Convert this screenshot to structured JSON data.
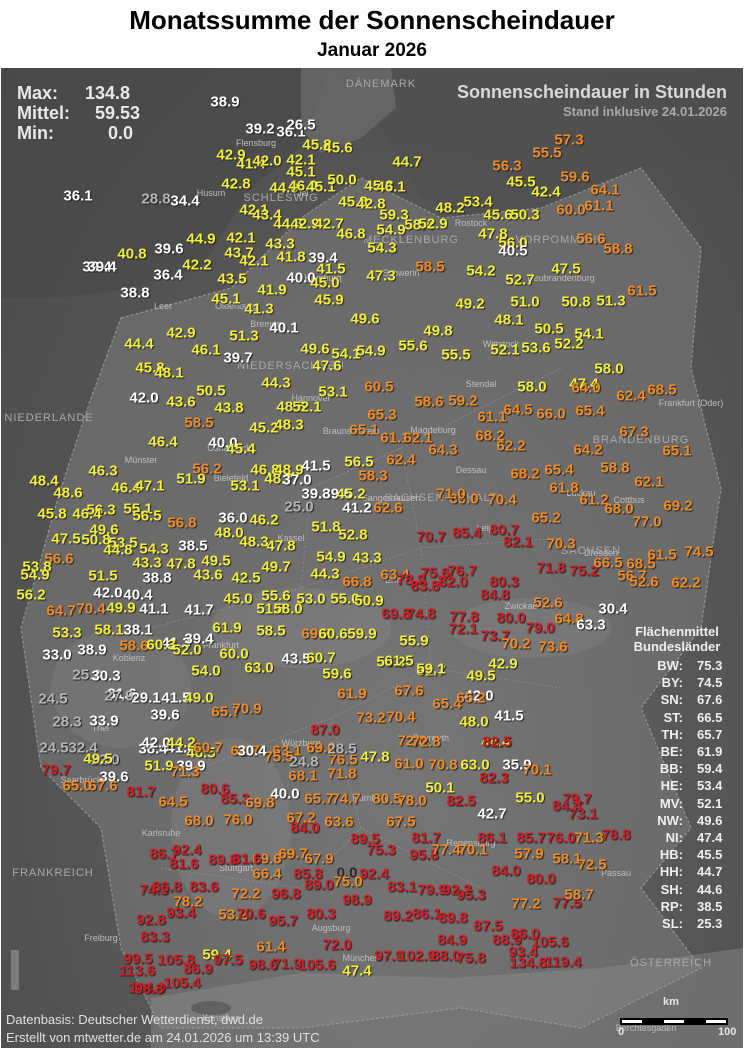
{
  "title": "Monatssumme der Sonnenscheindauer",
  "subtitle": "Januar 2026",
  "stats": {
    "max_label": "Max:",
    "max_value": "134.8",
    "mean_label": "Mittel:",
    "mean_value": "59.53",
    "min_label": "Min:",
    "min_value": "0.0"
  },
  "heading": "Sonnenscheindauer in Stunden",
  "status": "Stand inklusive 24.01.2026",
  "colors": {
    "white": "#ffffff",
    "yellow": "#f2ef3a",
    "orange": "#f08a24",
    "red": "#cf1f26",
    "gray": "#b5b5b5",
    "dark": "#2b2b2b"
  },
  "legend": {
    "title_line1": "Flächenmittel",
    "title_line2": "Bundesländer",
    "rows": [
      {
        "state": "BW:",
        "value": "75.3"
      },
      {
        "state": "BY:",
        "value": "74.5"
      },
      {
        "state": "SN:",
        "value": "67.6"
      },
      {
        "state": "ST:",
        "value": "66.5"
      },
      {
        "state": "TH:",
        "value": "65.7"
      },
      {
        "state": "BE:",
        "value": "61.9"
      },
      {
        "state": "BB:",
        "value": "59.4"
      },
      {
        "state": "HE:",
        "value": "53.4"
      },
      {
        "state": "MV:",
        "value": "52.1"
      },
      {
        "state": "NW:",
        "value": "49.6"
      },
      {
        "state": "NI:",
        "value": "47.4"
      },
      {
        "state": "HB:",
        "value": "45.5"
      },
      {
        "state": "HH:",
        "value": "44.7"
      },
      {
        "state": "SH:",
        "value": "44.6"
      },
      {
        "state": "RP:",
        "value": "38.5"
      },
      {
        "state": "SL:",
        "value": "25.3"
      }
    ]
  },
  "scale": {
    "unit": "km",
    "start": "0",
    "end": "100"
  },
  "credits": {
    "line1": "Datenbasis: Deutscher Wetterdienst, dwd.de",
    "line2": "Erstellt von mtwetter.de am 24.01.2026 um 13:39 UTC"
  },
  "regions": [
    "DÄNEMARK",
    "NIEDERLANDE",
    "FRANKREICH",
    "ÖSTERREICH",
    "BRANDENBURG",
    "NIEDERSACHSEN",
    "SACHSEN-ANHALT",
    "SACHSEN",
    "SCHLESWIG",
    "MECKLENBURG",
    "VORPOMMERN"
  ],
  "places": [
    "Flensburg",
    "Husum",
    "Kiel",
    "Rostock",
    "Schwerin",
    "Hamburg",
    "Bremen",
    "Oldenburg",
    "Leer",
    "Neubrandenburg",
    "Wittstock",
    "Stendal",
    "Hannover",
    "Braunschweig",
    "Osnabrück",
    "Bielefeld",
    "Münster",
    "Kassel",
    "Magdeburg",
    "Dessau",
    "Cottbus",
    "Leipzig",
    "Dresden",
    "Erfurt",
    "Zwickau",
    "Koblenz",
    "Frankfurt",
    "Trier",
    "Saarbrücken",
    "Würzburg",
    "Nürnberg",
    "Bayreuth",
    "Regensburg",
    "Passau",
    "Stuttgart",
    "Karlsruhe",
    "Augsburg",
    "München",
    "Freiburg",
    "Konstanz",
    "Berchtesgaden",
    "Frankfurt (Oder)",
    "Sangerhausen",
    "Luckau"
  ],
  "stations": [
    [
      "38.9",
      "w"
    ],
    [
      "39.2",
      "w"
    ],
    [
      "36.1",
      "w"
    ],
    [
      "26.5",
      "w"
    ],
    [
      "45.8",
      "y"
    ],
    [
      "45.6",
      "y"
    ],
    [
      "57.3",
      "o"
    ],
    [
      "55.5",
      "o"
    ],
    [
      "42.9",
      "y"
    ],
    [
      "41.4",
      "y"
    ],
    [
      "42.0",
      "y"
    ],
    [
      "42.1",
      "y"
    ],
    [
      "45.1",
      "y"
    ],
    [
      "44.7",
      "y"
    ],
    [
      "56.3",
      "o"
    ],
    [
      "45.5",
      "y"
    ],
    [
      "59.6",
      "o"
    ],
    [
      "42.4",
      "y"
    ],
    [
      "64.1",
      "o"
    ],
    [
      "42.8",
      "y"
    ],
    [
      "44.0",
      "y"
    ],
    [
      "46.0",
      "y"
    ],
    [
      "45.1",
      "y"
    ],
    [
      "50.0",
      "y"
    ],
    [
      "45.3",
      "y"
    ],
    [
      "46.1",
      "y"
    ],
    [
      "36.1",
      "w"
    ],
    [
      "28.8",
      "g"
    ],
    [
      "34.4",
      "w"
    ],
    [
      "45.8",
      "y"
    ],
    [
      "42.8",
      "y"
    ],
    [
      "53.4",
      "y"
    ],
    [
      "48.2",
      "y"
    ],
    [
      "45.6",
      "y"
    ],
    [
      "50.3",
      "y"
    ],
    [
      "60.0",
      "o"
    ],
    [
      "61.1",
      "o"
    ],
    [
      "42.1",
      "y"
    ],
    [
      "43.4",
      "y"
    ],
    [
      "44.8",
      "y"
    ],
    [
      "42.9",
      "y"
    ],
    [
      "42.7",
      "y"
    ],
    [
      "46.8",
      "y"
    ],
    [
      "54.9",
      "y"
    ],
    [
      "59.3",
      "y"
    ],
    [
      "58.4",
      "y"
    ],
    [
      "52.9",
      "y"
    ],
    [
      "47.8",
      "y"
    ],
    [
      "56.0",
      "y"
    ],
    [
      "56.6",
      "o"
    ],
    [
      "44.9",
      "y"
    ],
    [
      "42.1",
      "y"
    ],
    [
      "43.3",
      "y"
    ],
    [
      "39.6",
      "w"
    ],
    [
      "40.8",
      "y"
    ],
    [
      "43.7",
      "y"
    ],
    [
      "41.8",
      "y"
    ],
    [
      "39.4",
      "w"
    ],
    [
      "54.3",
      "y"
    ],
    [
      "40.5",
      "w"
    ],
    [
      "58.8",
      "o"
    ],
    [
      "39.4",
      "w"
    ],
    [
      "39.4",
      "w"
    ],
    [
      "42.2",
      "y"
    ],
    [
      "42.1",
      "y"
    ],
    [
      "41.5",
      "y"
    ],
    [
      "36.4",
      "w"
    ],
    [
      "43.5",
      "y"
    ],
    [
      "40.0",
      "w"
    ],
    [
      "45.0",
      "y"
    ],
    [
      "47.3",
      "y"
    ],
    [
      "58.5",
      "o"
    ],
    [
      "54.2",
      "y"
    ],
    [
      "52.7",
      "y"
    ],
    [
      "47.5",
      "y"
    ],
    [
      "38.8",
      "w"
    ],
    [
      "41.9",
      "y"
    ],
    [
      "45.1",
      "y"
    ],
    [
      "45.9",
      "y"
    ],
    [
      "49.2",
      "y"
    ],
    [
      "51.0",
      "y"
    ],
    [
      "50.8",
      "y"
    ],
    [
      "51.3",
      "y"
    ],
    [
      "61.5",
      "o"
    ],
    [
      "41.3",
      "y"
    ],
    [
      "49.6",
      "y"
    ],
    [
      "48.1",
      "y"
    ],
    [
      "50.5",
      "y"
    ],
    [
      "42.9",
      "y"
    ],
    [
      "51.3",
      "y"
    ],
    [
      "40.1",
      "w"
    ],
    [
      "49.8",
      "y"
    ],
    [
      "54.1",
      "y"
    ],
    [
      "44.4",
      "y"
    ],
    [
      "46.1",
      "y"
    ],
    [
      "39.7",
      "w"
    ],
    [
      "49.6",
      "y"
    ],
    [
      "54.1",
      "y"
    ],
    [
      "54.9",
      "y"
    ],
    [
      "55.6",
      "y"
    ],
    [
      "55.5",
      "y"
    ],
    [
      "52.1",
      "y"
    ],
    [
      "53.6",
      "y"
    ],
    [
      "52.2",
      "y"
    ],
    [
      "45.8",
      "y"
    ],
    [
      "48.1",
      "y"
    ],
    [
      "47.6",
      "y"
    ],
    [
      "44.3",
      "y"
    ],
    [
      "58.0",
      "y"
    ],
    [
      "47.4",
      "y"
    ],
    [
      "50.5",
      "y"
    ],
    [
      "53.1",
      "y"
    ],
    [
      "60.5",
      "o"
    ],
    [
      "58.0",
      "y"
    ],
    [
      "64.0",
      "o"
    ],
    [
      "62.4",
      "o"
    ],
    [
      "68.5",
      "o"
    ],
    [
      "42.0",
      "w"
    ],
    [
      "43.6",
      "y"
    ],
    [
      "43.8",
      "y"
    ],
    [
      "48.5",
      "y"
    ],
    [
      "52.1",
      "y"
    ],
    [
      "58.6",
      "o"
    ],
    [
      "59.2",
      "o"
    ],
    [
      "61.1",
      "o"
    ],
    [
      "64.5",
      "o"
    ],
    [
      "66.0",
      "o"
    ],
    [
      "65.4",
      "o"
    ],
    [
      "58.5",
      "o"
    ],
    [
      "45.2",
      "y"
    ],
    [
      "48.3",
      "y"
    ],
    [
      "65.3",
      "o"
    ],
    [
      "65.1",
      "o"
    ],
    [
      "61.1",
      "o"
    ],
    [
      "62.1",
      "o"
    ],
    [
      "68.2",
      "o"
    ],
    [
      "67.3",
      "o"
    ],
    [
      "46.8",
      "y"
    ],
    [
      "48.9",
      "y"
    ],
    [
      "46.4",
      "y"
    ],
    [
      "40.0",
      "w"
    ],
    [
      "45.4",
      "y"
    ],
    [
      "64.3",
      "o"
    ],
    [
      "62.2",
      "o"
    ],
    [
      "64.2",
      "o"
    ],
    [
      "65.1",
      "o"
    ],
    [
      "46.3",
      "y"
    ],
    [
      "56.2",
      "o"
    ],
    [
      "41.5",
      "w"
    ],
    [
      "56.5",
      "y"
    ],
    [
      "62.4",
      "o"
    ],
    [
      "58.3",
      "o"
    ],
    [
      "68.2",
      "o"
    ],
    [
      "65.4",
      "o"
    ],
    [
      "58.8",
      "o"
    ],
    [
      "48.4",
      "y"
    ],
    [
      "48.6",
      "y"
    ],
    [
      "46.4",
      "y"
    ],
    [
      "47.1",
      "y"
    ],
    [
      "51.9",
      "y"
    ],
    [
      "53.1",
      "y"
    ],
    [
      "48.7",
      "y"
    ],
    [
      "37.0",
      "w"
    ],
    [
      "39.8",
      "w"
    ],
    [
      "39.0",
      "w"
    ],
    [
      "45.2",
      "y"
    ],
    [
      "61.8",
      "o"
    ],
    [
      "62.1",
      "o"
    ],
    [
      "55.1",
      "y"
    ],
    [
      "56.3",
      "y"
    ],
    [
      "45.8",
      "y"
    ],
    [
      "46.4",
      "y"
    ],
    [
      "56.5",
      "y"
    ],
    [
      "46.2",
      "y"
    ],
    [
      "25.0",
      "g"
    ],
    [
      "51.8",
      "y"
    ],
    [
      "41.2",
      "w"
    ],
    [
      "62.6",
      "o"
    ],
    [
      "69.0",
      "o"
    ],
    [
      "71.0",
      "o"
    ],
    [
      "70.4",
      "o"
    ],
    [
      "61.2",
      "o"
    ],
    [
      "68.0",
      "o"
    ],
    [
      "69.2",
      "o"
    ],
    [
      "77.0",
      "o"
    ],
    [
      "49.6",
      "y"
    ],
    [
      "56.8",
      "o"
    ],
    [
      "36.0",
      "w"
    ],
    [
      "47.5",
      "y"
    ],
    [
      "50.8",
      "y"
    ],
    [
      "53.5",
      "y"
    ],
    [
      "44.8",
      "y"
    ],
    [
      "54.3",
      "y"
    ],
    [
      "38.5",
      "w"
    ],
    [
      "48.0",
      "y"
    ],
    [
      "48.3",
      "y"
    ],
    [
      "47.8",
      "y"
    ],
    [
      "52.8",
      "y"
    ],
    [
      "70.7",
      "r"
    ],
    [
      "85.4",
      "r"
    ],
    [
      "80.7",
      "r"
    ],
    [
      "82.1",
      "r"
    ],
    [
      "70.3",
      "o"
    ],
    [
      "65.2",
      "o"
    ],
    [
      "56.6",
      "o"
    ],
    [
      "43.3",
      "y"
    ],
    [
      "47.8",
      "y"
    ],
    [
      "49.5",
      "y"
    ],
    [
      "54.9",
      "y"
    ],
    [
      "43.3",
      "y"
    ],
    [
      "71.8",
      "r"
    ],
    [
      "75.2",
      "r"
    ],
    [
      "66.5",
      "o"
    ],
    [
      "68.5",
      "o"
    ],
    [
      "61.5",
      "o"
    ],
    [
      "74.5",
      "o"
    ],
    [
      "53.8",
      "y"
    ],
    [
      "54.9",
      "y"
    ],
    [
      "51.5",
      "y"
    ],
    [
      "38.8",
      "w"
    ],
    [
      "43.6",
      "y"
    ],
    [
      "42.5",
      "y"
    ],
    [
      "49.7",
      "y"
    ],
    [
      "44.3",
      "y"
    ],
    [
      "66.8",
      "o"
    ],
    [
      "63.4",
      "o"
    ],
    [
      "78.9",
      "r"
    ],
    [
      "75.6",
      "r"
    ],
    [
      "76.7",
      "r"
    ],
    [
      "80.3",
      "r"
    ],
    [
      "56.7",
      "o"
    ],
    [
      "62.2",
      "o"
    ],
    [
      "52.6",
      "o"
    ],
    [
      "56.2",
      "y"
    ],
    [
      "42.0",
      "w"
    ],
    [
      "40.4",
      "w"
    ],
    [
      "45.0",
      "y"
    ],
    [
      "55.6",
      "y"
    ],
    [
      "53.0",
      "y"
    ],
    [
      "55.0",
      "y"
    ],
    [
      "50.9",
      "y"
    ],
    [
      "83.8",
      "r"
    ],
    [
      "82.0",
      "r"
    ],
    [
      "84.8",
      "r"
    ],
    [
      "52.6",
      "o"
    ],
    [
      "30.4",
      "w"
    ],
    [
      "64.7",
      "o"
    ],
    [
      "70.4",
      "o"
    ],
    [
      "49.9",
      "y"
    ],
    [
      "41.1",
      "w"
    ],
    [
      "41.7",
      "w"
    ],
    [
      "51.8",
      "y"
    ],
    [
      "58.0",
      "y"
    ],
    [
      "69.8",
      "r"
    ],
    [
      "74.8",
      "r"
    ],
    [
      "77.8",
      "r"
    ],
    [
      "80.0",
      "r"
    ],
    [
      "64.8",
      "o"
    ],
    [
      "63.3",
      "w"
    ],
    [
      "53.3",
      "y"
    ],
    [
      "58.1",
      "y"
    ],
    [
      "38.1",
      "w"
    ],
    [
      "41.3",
      "w"
    ],
    [
      "39.4",
      "w"
    ],
    [
      "61.9",
      "y"
    ],
    [
      "58.5",
      "y"
    ],
    [
      "69.7",
      "o"
    ],
    [
      "60.6",
      "y"
    ],
    [
      "59.9",
      "y"
    ],
    [
      "55.9",
      "y"
    ],
    [
      "72.1",
      "r"
    ],
    [
      "73.7",
      "r"
    ],
    [
      "79.0",
      "r"
    ],
    [
      "33.0",
      "w"
    ],
    [
      "38.9",
      "w"
    ],
    [
      "58.6",
      "o"
    ],
    [
      "60.3",
      "y"
    ],
    [
      "52.0",
      "y"
    ],
    [
      "60.0",
      "y"
    ],
    [
      "43.5",
      "w"
    ],
    [
      "60.7",
      "y"
    ],
    [
      "58.2",
      "y"
    ],
    [
      "61.5",
      "y"
    ],
    [
      "61.7",
      "y"
    ],
    [
      "70.2",
      "o"
    ],
    [
      "73.6",
      "o"
    ],
    [
      "42.9",
      "y"
    ],
    [
      "25.3",
      "g"
    ],
    [
      "30.3",
      "w"
    ],
    [
      "54.0",
      "y"
    ],
    [
      "63.0",
      "y"
    ],
    [
      "59.6",
      "y"
    ],
    [
      "59.1",
      "y"
    ],
    [
      "49.5",
      "y"
    ],
    [
      "24.5",
      "g"
    ],
    [
      "31.6",
      "w"
    ],
    [
      "27.9",
      "g"
    ],
    [
      "29.1",
      "w"
    ],
    [
      "41.5",
      "w"
    ],
    [
      "49.0",
      "y"
    ],
    [
      "61.9",
      "o"
    ],
    [
      "67.6",
      "o"
    ],
    [
      "65.4",
      "o"
    ],
    [
      "42.0",
      "w"
    ],
    [
      "65.2",
      "o"
    ],
    [
      "28.3",
      "g"
    ],
    [
      "33.9",
      "w"
    ],
    [
      "39.6",
      "w"
    ],
    [
      "65.7",
      "o"
    ],
    [
      "70.9",
      "o"
    ],
    [
      "73.2",
      "o"
    ],
    [
      "70.4",
      "o"
    ],
    [
      "48.0",
      "y"
    ],
    [
      "41.5",
      "w"
    ],
    [
      "24.5",
      "g"
    ],
    [
      "32.4",
      "g"
    ],
    [
      "38.4",
      "w"
    ],
    [
      "41.6",
      "w"
    ],
    [
      "46.5",
      "y"
    ],
    [
      "72.0",
      "o"
    ],
    [
      "72.8",
      "o"
    ],
    [
      "44.4",
      "y"
    ],
    [
      "87.0",
      "r"
    ],
    [
      "79.7",
      "r"
    ],
    [
      "22.0",
      "g"
    ],
    [
      "42.0",
      "w"
    ],
    [
      "44.2",
      "y"
    ],
    [
      "60.7",
      "o"
    ],
    [
      "62.7",
      "o"
    ],
    [
      "63.1",
      "o"
    ],
    [
      "82.5",
      "r"
    ],
    [
      "69.6",
      "o"
    ],
    [
      "76.5",
      "o"
    ],
    [
      "49.5",
      "y"
    ],
    [
      "51.9",
      "y"
    ],
    [
      "39.9",
      "w"
    ],
    [
      "75.5",
      "o"
    ],
    [
      "30.4",
      "w"
    ],
    [
      "24.8",
      "g"
    ],
    [
      "28.5",
      "g"
    ],
    [
      "47.8",
      "y"
    ],
    [
      "61.0",
      "o"
    ],
    [
      "70.8",
      "o"
    ],
    [
      "63.0",
      "y"
    ],
    [
      "35.9",
      "w"
    ],
    [
      "70.1",
      "o"
    ],
    [
      "39.6",
      "w"
    ],
    [
      "65.0",
      "o"
    ],
    [
      "67.6",
      "o"
    ],
    [
      "71.3",
      "o"
    ],
    [
      "68.1",
      "o"
    ],
    [
      "71.8",
      "o"
    ],
    [
      "82.3",
      "r"
    ],
    [
      "81.7",
      "r"
    ],
    [
      "50.1",
      "y"
    ],
    [
      "64.5",
      "o"
    ],
    [
      "80.6",
      "r"
    ],
    [
      "85.3",
      "r"
    ],
    [
      "40.0",
      "w"
    ],
    [
      "65.7",
      "o"
    ],
    [
      "74.7",
      "o"
    ],
    [
      "80.5",
      "o"
    ],
    [
      "78.0",
      "o"
    ],
    [
      "82.5",
      "r"
    ],
    [
      "55.0",
      "y"
    ],
    [
      "79.7",
      "r"
    ],
    [
      "84.4",
      "r"
    ],
    [
      "68.0",
      "o"
    ],
    [
      "76.0",
      "o"
    ],
    [
      "69.8",
      "o"
    ],
    [
      "67.2",
      "o"
    ],
    [
      "63.6",
      "o"
    ],
    [
      "67.5",
      "o"
    ],
    [
      "42.7",
      "w"
    ],
    [
      "73.1",
      "r"
    ],
    [
      "84.0",
      "r"
    ],
    [
      "81.7",
      "r"
    ],
    [
      "86.1",
      "r"
    ],
    [
      "85.7",
      "r"
    ],
    [
      "76.0",
      "r"
    ],
    [
      "71.3",
      "o"
    ],
    [
      "78.8",
      "r"
    ],
    [
      "86.7",
      "r"
    ],
    [
      "92.4",
      "r"
    ],
    [
      "81.6",
      "r"
    ],
    [
      "89.8",
      "r"
    ],
    [
      "69.6",
      "o"
    ],
    [
      "69.7",
      "o"
    ],
    [
      "67.9",
      "o"
    ],
    [
      "89.5",
      "r"
    ],
    [
      "75.3",
      "r"
    ],
    [
      "95.8",
      "r"
    ],
    [
      "81.6",
      "r"
    ],
    [
      "77.4",
      "o"
    ],
    [
      "70.1",
      "o"
    ],
    [
      "57.9",
      "o"
    ],
    [
      "58.1",
      "o"
    ],
    [
      "72.5",
      "o"
    ],
    [
      "66.4",
      "o"
    ],
    [
      "85.8",
      "r"
    ],
    [
      "0.0",
      "d"
    ],
    [
      "92.4",
      "r"
    ],
    [
      "84.0",
      "r"
    ],
    [
      "80.0",
      "r"
    ],
    [
      "74.3",
      "r"
    ],
    [
      "86.8",
      "r"
    ],
    [
      "83.6",
      "r"
    ],
    [
      "89.0",
      "r"
    ],
    [
      "75.0",
      "o"
    ],
    [
      "78.2",
      "o"
    ],
    [
      "72.2",
      "o"
    ],
    [
      "96.8",
      "r"
    ],
    [
      "98.9",
      "r"
    ],
    [
      "83.1",
      "r"
    ],
    [
      "79.9",
      "r"
    ],
    [
      "92.3",
      "r"
    ],
    [
      "95.3",
      "r"
    ],
    [
      "77.2",
      "o"
    ],
    [
      "77.5",
      "r"
    ],
    [
      "58.7",
      "o"
    ],
    [
      "53.2",
      "o"
    ],
    [
      "70.6",
      "r"
    ],
    [
      "80.3",
      "r"
    ],
    [
      "89.2",
      "r"
    ],
    [
      "86.1",
      "r"
    ],
    [
      "89.8",
      "r"
    ],
    [
      "93.4",
      "r"
    ],
    [
      "95.7",
      "r"
    ],
    [
      "92.8",
      "r"
    ],
    [
      "83.3",
      "r"
    ],
    [
      "87.5",
      "r"
    ],
    [
      "99.5",
      "r"
    ],
    [
      "105.8",
      "r"
    ],
    [
      "59.4",
      "y"
    ],
    [
      "61.4",
      "o"
    ],
    [
      "72.0",
      "r"
    ],
    [
      "84.9",
      "r"
    ],
    [
      "88.9",
      "r"
    ],
    [
      "86.0",
      "r"
    ],
    [
      "105.6",
      "r"
    ],
    [
      "113.6",
      "r"
    ],
    [
      "104.0",
      "r"
    ],
    [
      "105.4",
      "r"
    ],
    [
      "86.9",
      "r"
    ],
    [
      "97.5",
      "r"
    ],
    [
      "98.6",
      "r"
    ],
    [
      "71.9",
      "r"
    ],
    [
      "105.6",
      "r"
    ],
    [
      "47.4",
      "y"
    ],
    [
      "97.9",
      "r"
    ],
    [
      "102.9",
      "r"
    ],
    [
      "88.0",
      "r"
    ],
    [
      "75.8",
      "r"
    ],
    [
      "93.4",
      "r"
    ],
    [
      "134.8",
      "r"
    ],
    [
      "119.4",
      "r"
    ],
    [
      "98.8",
      "r"
    ]
  ]
}
